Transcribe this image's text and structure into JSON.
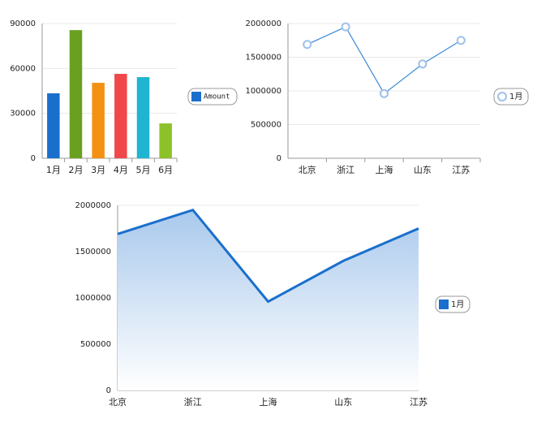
{
  "chart_data": [
    {
      "type": "bar",
      "categories": [
        "1月",
        "2月",
        "3月",
        "4月",
        "5月",
        "6月"
      ],
      "series": [
        {
          "name": "Amount",
          "color": "#1a6fcc",
          "values": [
            43400,
            85600,
            50400,
            56400,
            54200,
            23300
          ]
        }
      ],
      "colors": [
        "#1a6fcc",
        "#6aa020",
        "#f39212",
        "#f0474a",
        "#1fb4d0",
        "#8dc12a"
      ],
      "ylim": [
        0,
        90000
      ],
      "yticks": [
        0,
        30000,
        60000,
        90000
      ],
      "grid": true,
      "legend": "right"
    },
    {
      "type": "line",
      "categories": [
        "北京",
        "浙江",
        "上海",
        "山东",
        "江苏"
      ],
      "series": [
        {
          "name": "1月",
          "color": "#3d8ad6",
          "values": [
            1690000,
            1950000,
            960000,
            1400000,
            1750000
          ]
        }
      ],
      "ylim": [
        0,
        2000000
      ],
      "yticks": [
        0,
        500000,
        1000000,
        1500000,
        2000000
      ],
      "grid": true,
      "legend": "right"
    },
    {
      "type": "area",
      "categories": [
        "北京",
        "浙江",
        "上海",
        "山东",
        "江苏"
      ],
      "series": [
        {
          "name": "1月",
          "color": "#1a6fcc",
          "values": [
            1690000,
            1950000,
            960000,
            1400000,
            1750000
          ]
        }
      ],
      "ylim": [
        0,
        2000000
      ],
      "yticks": [
        0,
        500000,
        1000000,
        1500000,
        2000000
      ],
      "grid": true,
      "legend": "right"
    }
  ]
}
